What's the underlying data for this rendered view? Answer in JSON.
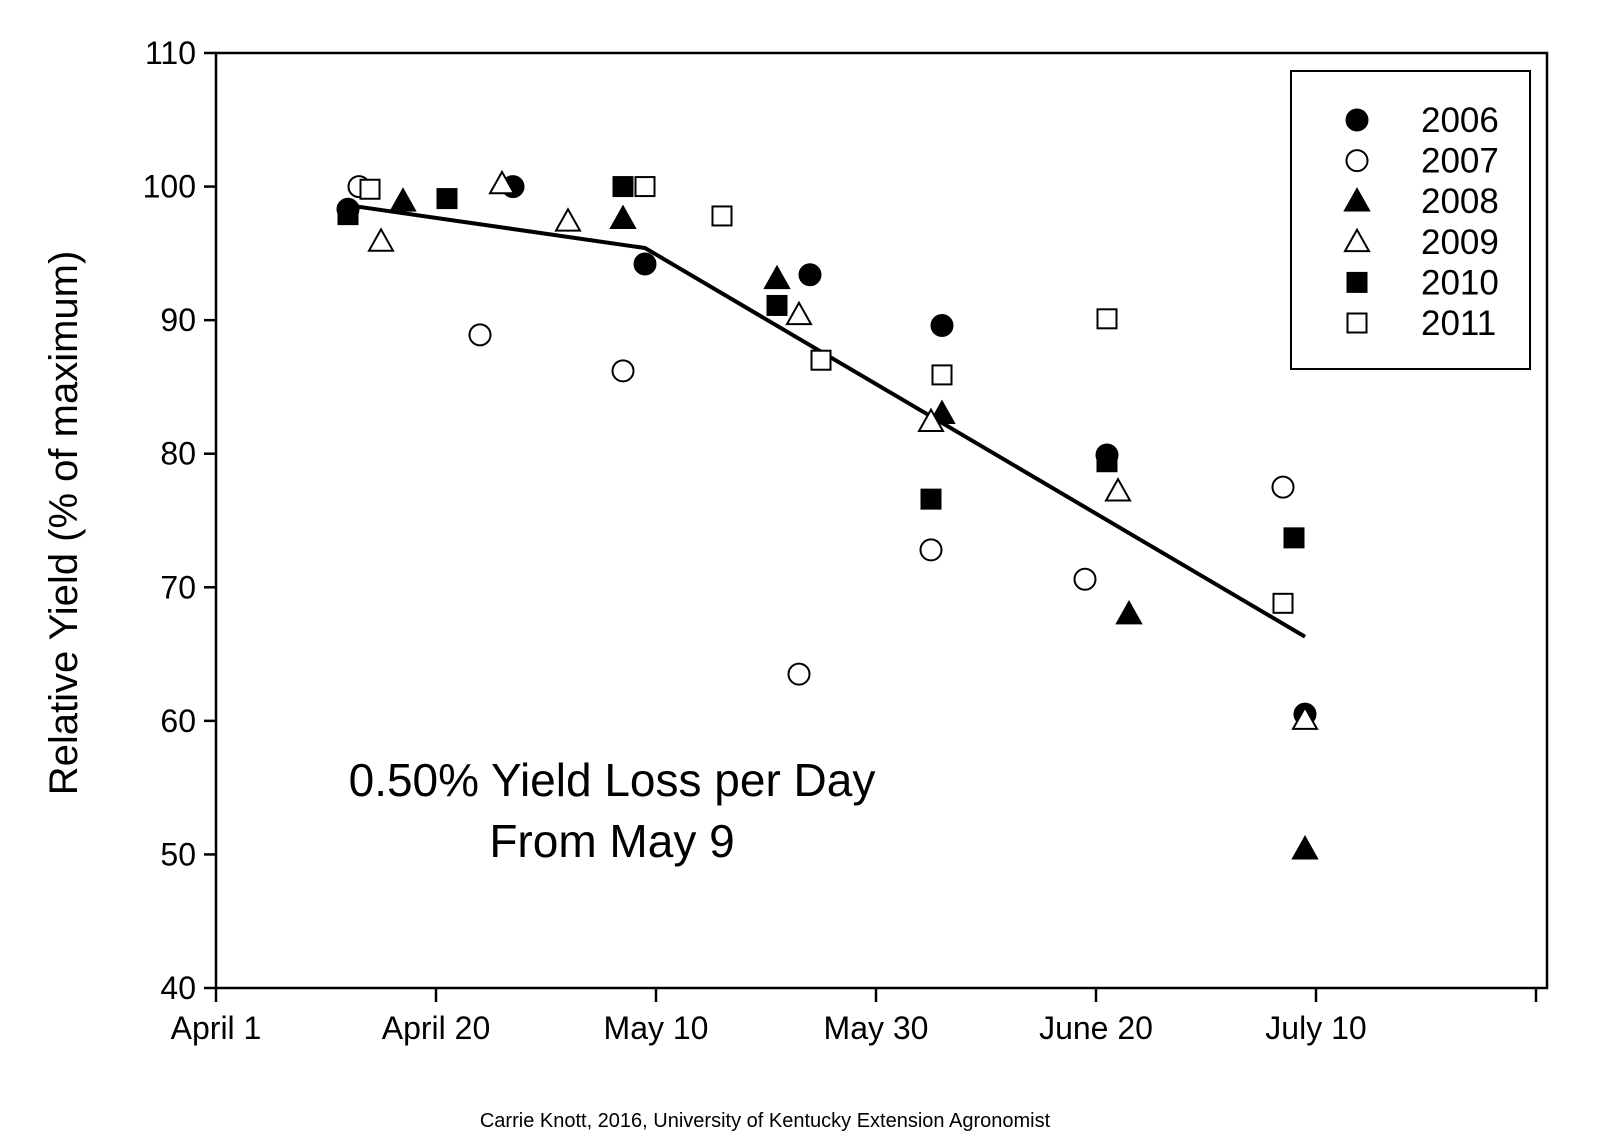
{
  "chart_data": {
    "type": "scatter",
    "title": "",
    "xlabel": "",
    "ylabel": "Relative Yield (% of maximum)",
    "xlim": [
      "2000-04-01",
      "2000-07-31"
    ],
    "ylim": [
      40,
      110
    ],
    "xticks": [
      {
        "date": "2000-04-01",
        "label": "April 1"
      },
      {
        "date": "2000-04-21",
        "label": "April 20"
      },
      {
        "date": "2000-05-11",
        "label": "May 10"
      },
      {
        "date": "2000-05-31",
        "label": "May 30"
      },
      {
        "date": "2000-06-20",
        "label": "June 20"
      },
      {
        "date": "2000-07-10",
        "label": "July 10"
      },
      {
        "date": "2000-07-30",
        "label": ""
      }
    ],
    "yticks": [
      40,
      50,
      60,
      70,
      80,
      90,
      100,
      110
    ],
    "grid": false,
    "legend_position": "top-right",
    "series": [
      {
        "name": "2006",
        "marker": "circle",
        "filled": true,
        "points": [
          [
            "2000-04-13",
            98.3
          ],
          [
            "2000-04-28",
            100.0
          ],
          [
            "2000-05-10",
            94.2
          ],
          [
            "2000-05-25",
            93.4
          ],
          [
            "2000-06-06",
            89.6
          ],
          [
            "2000-06-21",
            79.9
          ],
          [
            "2000-07-09",
            60.5
          ]
        ]
      },
      {
        "name": "2007",
        "marker": "circle",
        "filled": false,
        "points": [
          [
            "2000-04-14",
            100.0
          ],
          [
            "2000-04-25",
            88.9
          ],
          [
            "2000-05-08",
            86.2
          ],
          [
            "2000-05-24",
            63.5
          ],
          [
            "2000-06-05",
            72.8
          ],
          [
            "2000-06-19",
            70.6
          ],
          [
            "2000-07-07",
            77.5
          ]
        ]
      },
      {
        "name": "2008",
        "marker": "triangle",
        "filled": true,
        "points": [
          [
            "2000-04-18",
            98.9
          ],
          [
            "2000-05-08",
            97.6
          ],
          [
            "2000-05-22",
            93.1
          ],
          [
            "2000-06-06",
            83.0
          ],
          [
            "2000-06-23",
            68.0
          ],
          [
            "2000-07-09",
            50.4
          ]
        ]
      },
      {
        "name": "2009",
        "marker": "triangle",
        "filled": false,
        "points": [
          [
            "2000-04-16",
            95.9
          ],
          [
            "2000-04-27",
            100.2
          ],
          [
            "2000-05-03",
            97.4
          ],
          [
            "2000-05-24",
            90.4
          ],
          [
            "2000-06-05",
            82.4
          ],
          [
            "2000-06-22",
            77.2
          ],
          [
            "2000-07-09",
            60.1
          ]
        ]
      },
      {
        "name": "2010",
        "marker": "square",
        "filled": true,
        "points": [
          [
            "2000-04-13",
            97.9
          ],
          [
            "2000-04-22",
            99.1
          ],
          [
            "2000-05-08",
            100.0
          ],
          [
            "2000-05-22",
            91.1
          ],
          [
            "2000-06-05",
            76.6
          ],
          [
            "2000-06-21",
            79.4
          ],
          [
            "2000-07-08",
            73.7
          ]
        ]
      },
      {
        "name": "2011",
        "marker": "square",
        "filled": false,
        "points": [
          [
            "2000-04-15",
            99.8
          ],
          [
            "2000-05-10",
            100.0
          ],
          [
            "2000-05-17",
            97.8
          ],
          [
            "2000-05-26",
            87.0
          ],
          [
            "2000-06-06",
            85.9
          ],
          [
            "2000-06-21",
            90.1
          ],
          [
            "2000-07-07",
            68.8
          ]
        ]
      }
    ],
    "fit_line": {
      "points": [
        [
          "2000-04-13",
          98.6
        ],
        [
          "2000-05-10",
          95.4
        ],
        [
          "2000-07-09",
          66.3
        ]
      ]
    },
    "annotation": [
      "0.50% Yield Loss per Day",
      "From May 9"
    ],
    "credit": "Carrie Knott, 2016, University of Kentucky Extension Agronomist"
  }
}
